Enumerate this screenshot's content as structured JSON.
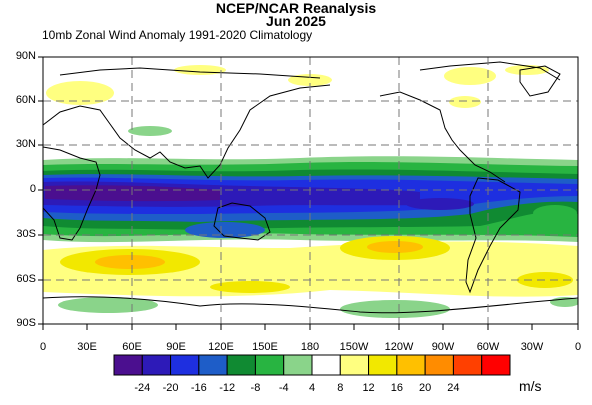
{
  "header": {
    "title": "NCEP/NCAR Reanalysis",
    "subtitle_date": "Jun 2025",
    "variable_label": "10mb Zonal Wind Anomaly  1991-2020 Climatology"
  },
  "map": {
    "projection": "equirectangular",
    "lon_range": [
      0,
      360
    ],
    "lat_range": [
      -90,
      90
    ],
    "lat_ticks": [
      "90N",
      "60N",
      "30N",
      "0",
      "30S",
      "60S",
      "90S"
    ],
    "lon_ticks": [
      "0",
      "30E",
      "60E",
      "90E",
      "120E",
      "150E",
      "180",
      "150W",
      "120W",
      "90W",
      "60W",
      "30W",
      "0"
    ],
    "grid": "dashed every 60 degrees longitude and 30 degrees latitude",
    "field": "10mb zonal wind anomaly (m/s)",
    "features": {
      "tropical_easterly_anomaly_max": -28,
      "southern_midlatitude_westerly_anomaly_max": 14
    }
  },
  "colorbar": {
    "labels": [
      "-24",
      "-20",
      "-16",
      "-12",
      "-8",
      "-4",
      "4",
      "8",
      "12",
      "16",
      "20",
      "24"
    ],
    "colors": [
      "#4b0f8f",
      "#2d1ab8",
      "#1e2fe0",
      "#1e5dc8",
      "#108a32",
      "#28b441",
      "#8ad48a",
      "#ffffff",
      "#ffff80",
      "#f2e800",
      "#ffc000",
      "#ff8c00",
      "#ff4000",
      "#ff0000"
    ],
    "units": "m/s"
  }
}
